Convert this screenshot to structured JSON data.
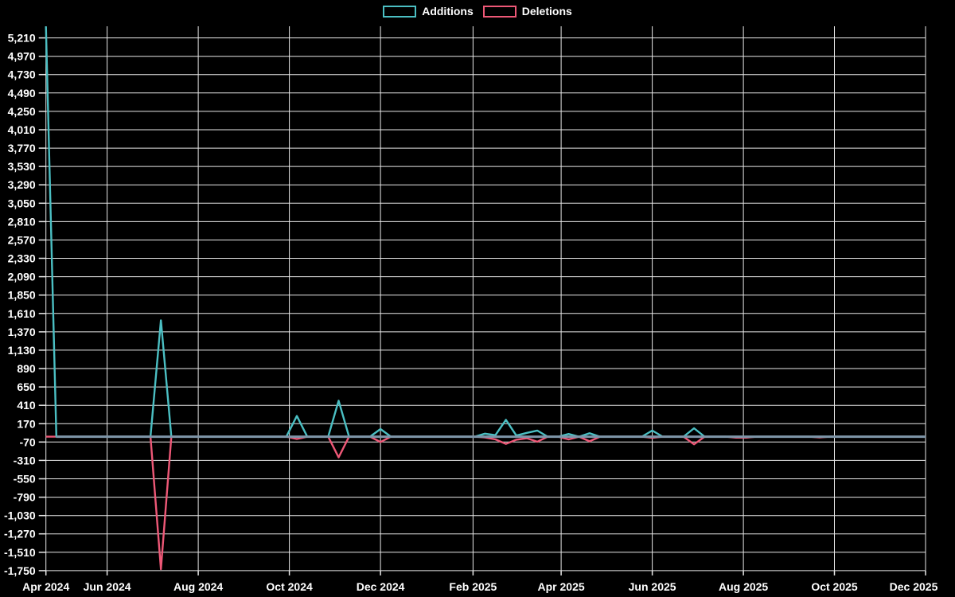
{
  "page": {
    "background": "#000000"
  },
  "legend": {
    "position": "top",
    "items": [
      {
        "label": "Additions",
        "color": "#4bbfc3"
      },
      {
        "label": "Deletions",
        "color": "#ee5877"
      }
    ]
  },
  "colors": {
    "background": "#000000",
    "grid": "#e8e8e8",
    "axis_text": "#ffffff",
    "zero_baseline": "#7e95a8",
    "additions": "#4bbfc3",
    "deletions": "#ee5877"
  },
  "chart_data": {
    "type": "line",
    "title": "",
    "xlabel": "",
    "ylabel": "",
    "grid": true,
    "legend_position": "top",
    "series": [
      {
        "name": "Additions",
        "color": "#4bbfc3"
      },
      {
        "name": "Deletions",
        "color": "#ee5877"
      }
    ],
    "x_axis": {
      "start": "2024-04-21",
      "end": "2025-12-01",
      "last_point": "2025-11-30",
      "interval": "weekly",
      "tick_labels": [
        "Apr 2024",
        "Jun 2024",
        "Aug 2024",
        "Oct 2024",
        "Dec 2024",
        "Feb 2025",
        "Apr 2025",
        "Jun 2025",
        "Aug 2025",
        "Oct 2025",
        "Dec 2025"
      ]
    },
    "y_axis": {
      "min": -1750,
      "max": 5361,
      "tick_step": 240,
      "ticks": [
        5210,
        4970,
        4730,
        4490,
        4250,
        4010,
        3770,
        3530,
        3290,
        3050,
        2810,
        2570,
        2330,
        2090,
        1850,
        1610,
        1370,
        1130,
        890,
        650,
        410,
        170,
        -70,
        -310,
        -550,
        -790,
        -1030,
        -1270,
        -1510,
        -1750
      ]
    },
    "points": [
      {
        "date": "2024-04-21",
        "additions": 5360,
        "deletions": 0
      },
      {
        "date": "2024-07-07",
        "additions": 1520,
        "deletions": -1730
      },
      {
        "date": "2024-10-06",
        "additions": 270,
        "deletions": -30
      },
      {
        "date": "2024-11-03",
        "additions": 470,
        "deletions": -270
      },
      {
        "date": "2024-12-01",
        "additions": 100,
        "deletions": -70
      },
      {
        "date": "2025-02-09",
        "additions": 40,
        "deletions": -10
      },
      {
        "date": "2025-02-16",
        "additions": 20,
        "deletions": -35
      },
      {
        "date": "2025-02-23",
        "additions": 220,
        "deletions": -95
      },
      {
        "date": "2025-03-02",
        "additions": 15,
        "deletions": -40
      },
      {
        "date": "2025-03-09",
        "additions": 50,
        "deletions": -20
      },
      {
        "date": "2025-03-16",
        "additions": 80,
        "deletions": -65
      },
      {
        "date": "2025-04-06",
        "additions": 35,
        "deletions": -35
      },
      {
        "date": "2025-04-20",
        "additions": 45,
        "deletions": -60
      },
      {
        "date": "2025-06-01",
        "additions": 80,
        "deletions": -15
      },
      {
        "date": "2025-06-29",
        "additions": 110,
        "deletions": -100
      },
      {
        "date": "2025-07-27",
        "additions": 0,
        "deletions": -12
      },
      {
        "date": "2025-08-03",
        "additions": 0,
        "deletions": -12
      },
      {
        "date": "2025-09-21",
        "additions": 0,
        "deletions": -10
      }
    ],
    "note": "weekly series; every week not listed in points has additions 0 and deletions 0"
  }
}
